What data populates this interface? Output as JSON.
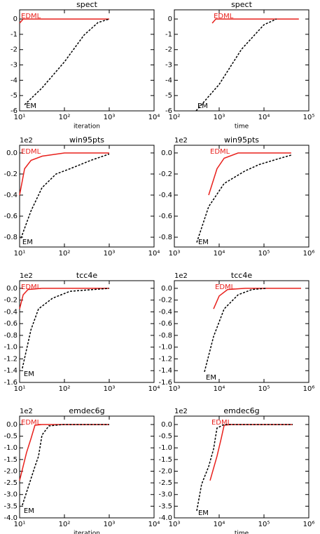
{
  "chart_data": [
    {
      "type": "line",
      "title": "spect",
      "xlabel": "iteration",
      "xscale": "log",
      "xlim": [
        10,
        10000
      ],
      "ylim": [
        -6,
        0.6
      ],
      "xticks": [
        {
          "value": 10,
          "label": "10¹"
        },
        {
          "value": 100,
          "label": "10²"
        },
        {
          "value": 1000,
          "label": "10³"
        },
        {
          "value": 10000,
          "label": "10⁴"
        }
      ],
      "yticks": [
        0,
        -1,
        -2,
        -3,
        -4,
        -5,
        -6
      ],
      "series": [
        {
          "name": "EDML",
          "color": "#e8201c",
          "linestyle": "solid",
          "x": [
            10,
            12,
            1000
          ],
          "values": [
            -0.27,
            0,
            0
          ]
        },
        {
          "name": "EM",
          "color": "#000000",
          "linestyle": "dashed",
          "x": [
            12.9,
            31.6,
            100,
            274,
            562,
            1000
          ],
          "values": [
            -5.6,
            -4.5,
            -2.8,
            -1.05,
            -0.23,
            0
          ]
        }
      ]
    },
    {
      "type": "line",
      "title": "spect",
      "xlabel": "time",
      "xscale": "log",
      "xlim": [
        100,
        100000
      ],
      "ylim": [
        -6,
        0.6
      ],
      "xticks": [
        {
          "value": 100,
          "label": "10²"
        },
        {
          "value": 1000,
          "label": "10³"
        },
        {
          "value": 10000,
          "label": "10⁴"
        },
        {
          "value": 100000,
          "label": "10⁵"
        }
      ],
      "yticks": [
        0,
        -1,
        -2,
        -3,
        -4,
        -5,
        -6
      ],
      "series": [
        {
          "name": "EDML",
          "color": "#e8201c",
          "linestyle": "solid",
          "x": [
            700,
            840,
            60000
          ],
          "values": [
            -0.27,
            0,
            0
          ]
        },
        {
          "name": "EM",
          "color": "#000000",
          "linestyle": "dashed",
          "x": [
            305,
            1000,
            3160,
            10000,
            19000
          ],
          "values": [
            -6,
            -4.27,
            -1.97,
            -0.37,
            0
          ]
        }
      ]
    },
    {
      "type": "line",
      "title": "win95pts",
      "offset_label": "1e2",
      "xscale": "log",
      "xlim": [
        10,
        10000
      ],
      "ylim": [
        -0.893,
        0.073
      ],
      "xticks": [
        {
          "value": 10,
          "label": "10¹"
        },
        {
          "value": 100,
          "label": "10²"
        },
        {
          "value": 1000,
          "label": "10³"
        },
        {
          "value": 10000,
          "label": "10⁴"
        }
      ],
      "yticks": [
        {
          "value": 0,
          "label": "0.0"
        },
        -0.2,
        -0.4,
        -0.6,
        -0.8
      ],
      "series": [
        {
          "name": "EDML",
          "color": "#e8201c",
          "linestyle": "solid",
          "x": [
            10,
            12.9,
            18,
            32,
            100,
            1000
          ],
          "values": [
            -0.4,
            -0.15,
            -0.07,
            -0.03,
            0,
            0
          ]
        },
        {
          "name": "EM",
          "color": "#000000",
          "linestyle": "dashed",
          "x": [
            10.7,
            18,
            31.6,
            65,
            133,
            390,
            1000
          ],
          "values": [
            -0.81,
            -0.55,
            -0.33,
            -0.2,
            -0.15,
            -0.07,
            -0.01
          ]
        }
      ]
    },
    {
      "type": "line",
      "title": "win95pts",
      "offset_label": "1e2",
      "xscale": "log",
      "xlim": [
        1000,
        1000000
      ],
      "ylim": [
        -0.893,
        0.073
      ],
      "xticks": [
        {
          "value": 1000,
          "label": "10³"
        },
        {
          "value": 10000,
          "label": "10⁴"
        },
        {
          "value": 100000,
          "label": "10⁵"
        },
        {
          "value": 1000000,
          "label": "10⁶"
        }
      ],
      "yticks": [
        {
          "value": 0,
          "label": "0.0"
        },
        -0.2,
        -0.4,
        -0.6,
        -0.8
      ],
      "series": [
        {
          "name": "EDML",
          "color": "#e8201c",
          "linestyle": "solid",
          "x": [
            5830,
            8960,
            12900,
            26400,
            406000
          ],
          "values": [
            -0.4,
            -0.15,
            -0.05,
            0,
            0
          ]
        },
        {
          "name": "EM",
          "color": "#000000",
          "linestyle": "dashed",
          "x": [
            3160,
            5830,
            12900,
            38000,
            78000,
            230000,
            406000
          ],
          "values": [
            -0.85,
            -0.51,
            -0.29,
            -0.17,
            -0.11,
            -0.05,
            -0.02
          ]
        }
      ]
    },
    {
      "type": "line",
      "title": "tcc4e",
      "offset_label": "1e2",
      "xscale": "log",
      "xlim": [
        10,
        10000
      ],
      "ylim": [
        -1.6,
        0.13
      ],
      "xticks": [
        {
          "value": 10,
          "label": "10¹"
        },
        {
          "value": 100,
          "label": "10²"
        },
        {
          "value": 1000,
          "label": "10³"
        },
        {
          "value": 10000,
          "label": "10⁴"
        }
      ],
      "yticks": [
        {
          "value": 0,
          "label": "0.0"
        },
        -0.2,
        -0.4,
        -0.6,
        -0.8,
        {
          "value": -1,
          "label": "-1.0"
        },
        -1.2,
        -1.4,
        -1.6
      ],
      "series": [
        {
          "name": "EDML",
          "color": "#e8201c",
          "linestyle": "solid",
          "x": [
            10,
            12,
            15.4,
            31.6,
            1000
          ],
          "values": [
            -0.35,
            -0.11,
            -0.02,
            0,
            0
          ]
        },
        {
          "name": "EM",
          "color": "#000000",
          "linestyle": "dashed",
          "x": [
            11.5,
            18,
            26.4,
            54,
            133,
            1000
          ],
          "values": [
            -1.36,
            -0.7,
            -0.35,
            -0.17,
            -0.05,
            0
          ]
        }
      ]
    },
    {
      "type": "line",
      "title": "tcc4e",
      "offset_label": "1e2",
      "xscale": "log",
      "xlim": [
        1000,
        1000000
      ],
      "ylim": [
        -1.6,
        0.13
      ],
      "xticks": [
        {
          "value": 1000,
          "label": "10³"
        },
        {
          "value": 10000,
          "label": "10⁴"
        },
        {
          "value": 100000,
          "label": "10⁵"
        },
        {
          "value": 1000000,
          "label": "10⁶"
        }
      ],
      "yticks": [
        {
          "value": 0,
          "label": "0.0"
        },
        -0.2,
        -0.4,
        -0.6,
        -0.8,
        {
          "value": -1,
          "label": "-1.0"
        },
        -1.2,
        -1.4,
        -1.6
      ],
      "series": [
        {
          "name": "EDML",
          "color": "#e8201c",
          "linestyle": "solid",
          "x": [
            7500,
            10000,
            15400,
            38000,
            673000
          ],
          "values": [
            -0.35,
            -0.13,
            -0.02,
            0,
            0
          ]
        },
        {
          "name": "EM",
          "color": "#000000",
          "linestyle": "dashed",
          "x": [
            4700,
            7500,
            12900,
            26400,
            54000,
            111000
          ],
          "values": [
            -1.42,
            -0.82,
            -0.35,
            -0.11,
            -0.02,
            0
          ]
        }
      ]
    },
    {
      "type": "line",
      "title": "emdec6g",
      "offset_label": "1e2",
      "xlabel": "iteration",
      "xscale": "log",
      "xlim": [
        10,
        10000
      ],
      "ylim": [
        -4,
        0.36
      ],
      "xticks": [
        {
          "value": 10,
          "label": "10¹"
        },
        {
          "value": 100,
          "label": "10²"
        },
        {
          "value": 1000,
          "label": "10³"
        },
        {
          "value": 10000,
          "label": "10⁴"
        }
      ],
      "yticks": [
        {
          "value": 0,
          "label": "0.0"
        },
        -0.5,
        {
          "value": -1,
          "label": "-1.0"
        },
        -1.5,
        {
          "value": -2,
          "label": "-2.0"
        },
        -2.5,
        {
          "value": -3,
          "label": "-3.0"
        },
        -3.5,
        {
          "value": -4,
          "label": "-4.0"
        }
      ],
      "series": [
        {
          "name": "EDML",
          "color": "#e8201c",
          "linestyle": "solid",
          "x": [
            10,
            14.3,
            18,
            22,
            31.6,
            1000
          ],
          "values": [
            -2.4,
            -1.2,
            -0.6,
            -0.03,
            0,
            0
          ]
        },
        {
          "name": "EM",
          "color": "#000000",
          "linestyle": "dashed",
          "x": [
            11.5,
            15.4,
            22,
            26.4,
            31.6,
            45,
            93,
            1000
          ],
          "values": [
            -3.46,
            -2.71,
            -1.8,
            -1.36,
            -0.45,
            -0.06,
            0,
            0
          ]
        }
      ]
    },
    {
      "type": "line",
      "title": "emdec6g",
      "offset_label": "1e2",
      "xlabel": "time",
      "xscale": "log",
      "xlim": [
        1000,
        1000000
      ],
      "ylim": [
        -4,
        0.36
      ],
      "xticks": [
        {
          "value": 1000,
          "label": "10³"
        },
        {
          "value": 10000,
          "label": "10⁴"
        },
        {
          "value": 100000,
          "label": "10⁵"
        },
        {
          "value": 1000000,
          "label": "10⁶"
        }
      ],
      "yticks": [
        {
          "value": 0,
          "label": "0.0"
        },
        -0.5,
        {
          "value": -1,
          "label": "-1.0"
        },
        -1.5,
        {
          "value": -2,
          "label": "-2.0"
        },
        -2.5,
        {
          "value": -3,
          "label": "-3.0"
        },
        -3.5,
        {
          "value": -4,
          "label": "-4.0"
        }
      ],
      "series": [
        {
          "name": "EDML",
          "color": "#e8201c",
          "linestyle": "solid",
          "x": [
            6260,
            8960,
            11100,
            12900,
            18400,
            437000
          ],
          "values": [
            -2.4,
            -1.36,
            -0.6,
            -0.03,
            0,
            0
          ]
        },
        {
          "name": "EM",
          "color": "#000000",
          "linestyle": "dashed",
          "x": [
            3160,
            4060,
            5830,
            7500,
            8960,
            12900,
            437000
          ],
          "values": [
            -3.7,
            -2.56,
            -1.8,
            -1.05,
            -0.15,
            0,
            0
          ]
        }
      ]
    }
  ]
}
